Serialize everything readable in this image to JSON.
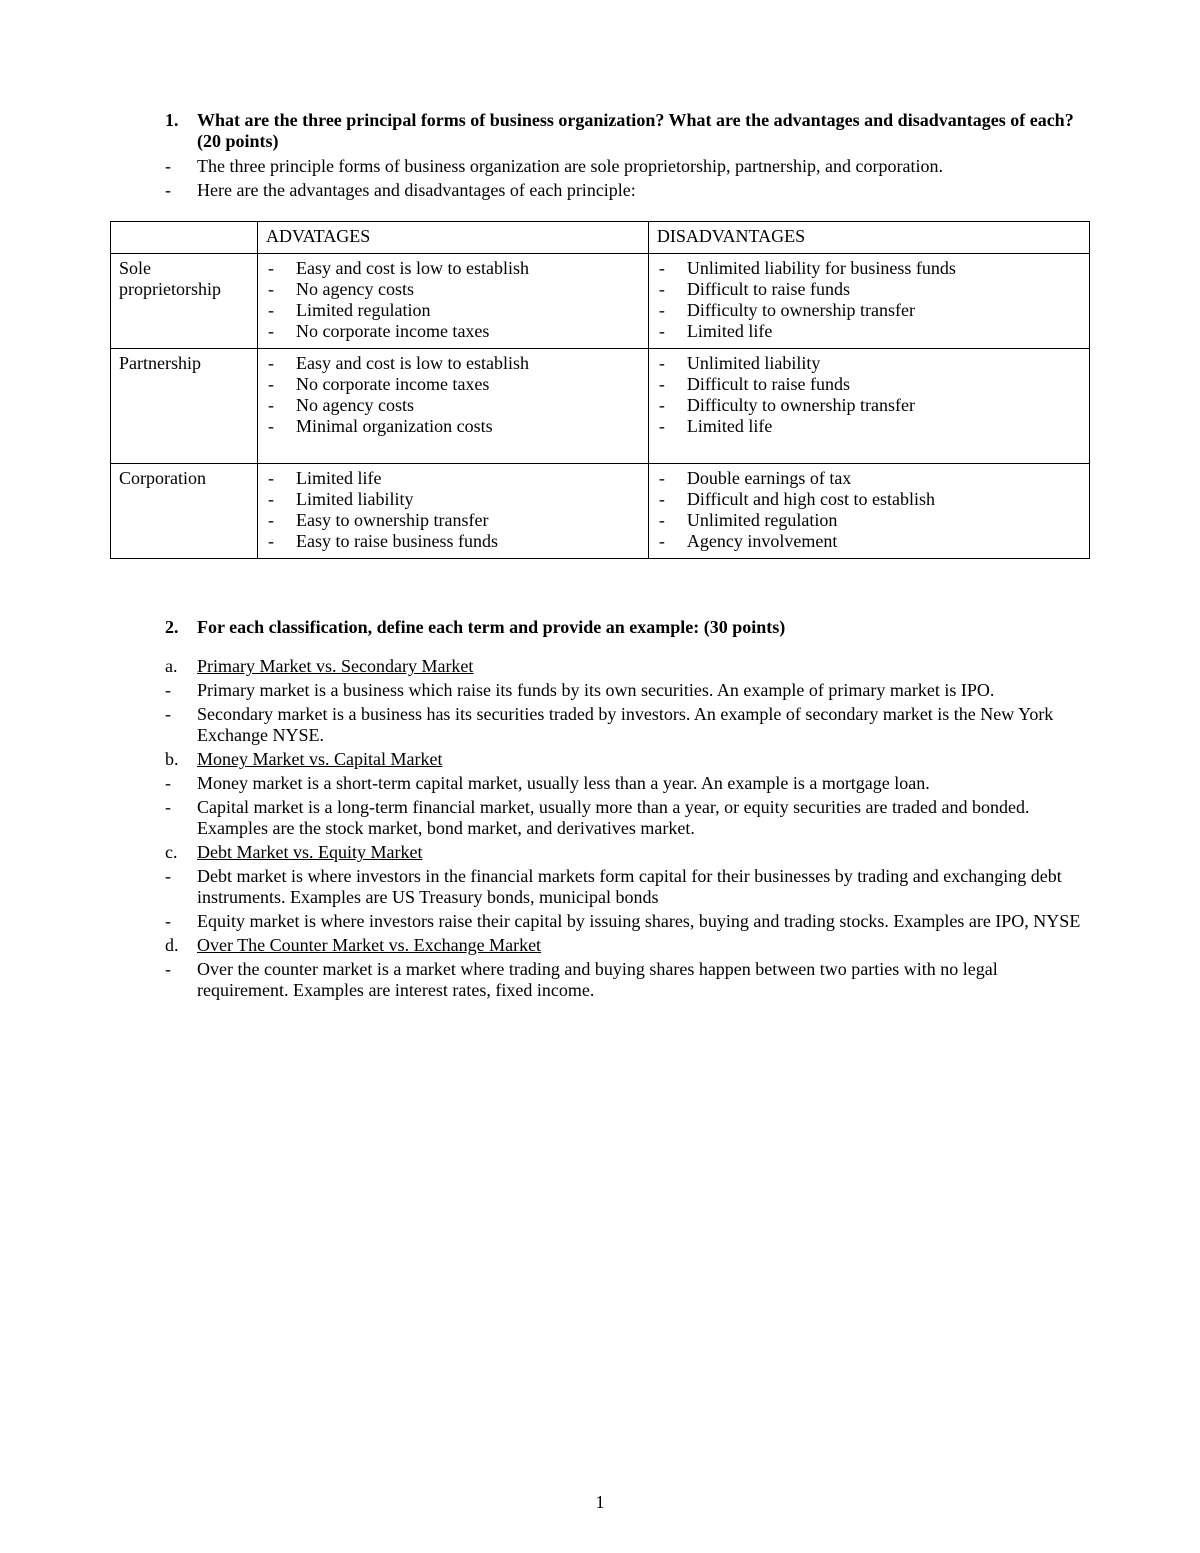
{
  "q1": {
    "num": "1.",
    "question": "What are the three principal forms of business organization? What are the advantages and disadvantages of each? (20 points)",
    "answers": [
      "The three principle forms of business organization are sole proprietorship, partnership, and corporation.",
      "Here are the advantages and disadvantages of each principle:"
    ]
  },
  "table": {
    "headers": {
      "blank": "",
      "adv": "ADVATAGES",
      "dis": "DISADVANTAGES"
    },
    "rows": [
      {
        "label": "Sole proprietorship",
        "adv": [
          "Easy and cost is low to establish",
          "No agency costs",
          "Limited regulation",
          "No corporate income taxes"
        ],
        "dis": [
          "Unlimited liability for business funds",
          "Difficult to raise funds",
          "Difficulty to ownership transfer",
          "Limited life"
        ]
      },
      {
        "label": "Partnership",
        "adv": [
          "Easy and cost is low to establish",
          "No corporate income taxes",
          "No agency costs",
          "Minimal organization costs"
        ],
        "dis": [
          "Unlimited liability",
          "Difficult to raise funds",
          "Difficulty to ownership transfer",
          "Limited life"
        ],
        "extra_pad": true
      },
      {
        "label": "Corporation",
        "adv": [
          "Limited life",
          "Limited liability",
          "Easy to ownership transfer",
          "Easy to raise business funds"
        ],
        "dis": [
          "Double earnings of tax",
          "Difficult and high cost to establish",
          "Unlimited regulation",
          "Agency involvement"
        ]
      }
    ]
  },
  "q2": {
    "num": "2.",
    "question": "For each classification, define each term and provide an example: (30 points)",
    "parts": [
      {
        "letter": "a.",
        "title": "Primary Market vs. Secondary Market",
        "items": [
          "Primary market is a business which raise its funds by its own securities. An example of primary market is IPO.",
          "Secondary market is a business has its securities traded by investors. An example of secondary market is the New York Exchange NYSE."
        ]
      },
      {
        "letter": "b.",
        "title": "Money Market vs. Capital Market",
        "items": [
          "Money market is a short-term capital market, usually less than a year. An example is a mortgage loan.",
          "Capital market is a long-term financial market, usually more than a year, or equity securities are traded and bonded. Examples are the stock market, bond market, and derivatives market."
        ]
      },
      {
        "letter": "c.",
        "title": "Debt Market vs. Equity Market",
        "items": [
          "Debt market is where investors in the financial markets form capital for their businesses by trading and exchanging debt instruments. Examples are US Treasury bonds, municipal bonds",
          "Equity market is where investors raise their capital by issuing shares, buying and trading stocks. Examples are IPO, NYSE"
        ]
      },
      {
        "letter": "d.",
        "title": "Over The Counter Market vs. Exchange Market",
        "items": [
          "Over the counter market is a market where trading and buying shares happen between two parties with no legal requirement. Examples are interest rates, fixed income."
        ]
      }
    ]
  },
  "page_number": "1"
}
